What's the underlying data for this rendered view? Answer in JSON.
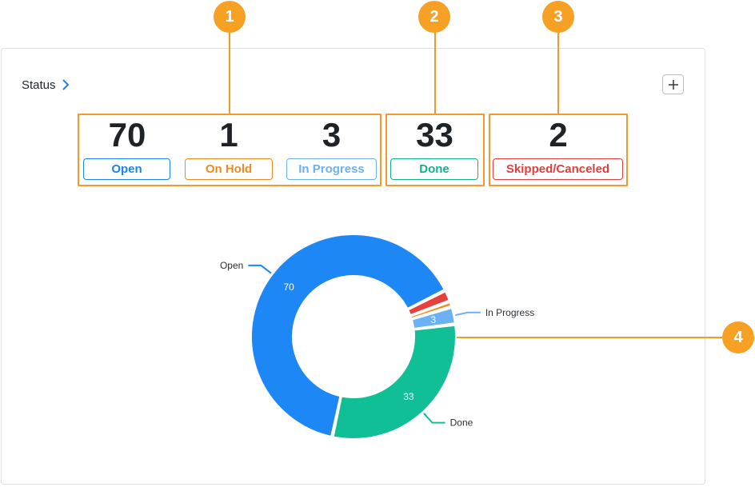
{
  "panel": {
    "title": "Status",
    "add_label": "+"
  },
  "badges": [
    "1",
    "2",
    "3",
    "4"
  ],
  "stats": [
    {
      "count": "70",
      "label": "Open",
      "color": "#1a84ef"
    },
    {
      "count": "1",
      "label": "On Hold",
      "color": "#ef8a1e"
    },
    {
      "count": "3",
      "label": "In Progress",
      "color": "#6cb1f3"
    },
    {
      "count": "33",
      "label": "Done",
      "color": "#12b08e"
    },
    {
      "count": "2",
      "label": "Skipped/Canceled",
      "color": "#e23d3d"
    }
  ],
  "chart_data": {
    "type": "pie",
    "categories": [
      "Open",
      "Skipped/Canceled",
      "On Hold",
      "In Progress",
      "Done"
    ],
    "values": [
      70,
      2,
      1,
      3,
      33
    ],
    "colors": [
      "#1d88f5",
      "#e8403c",
      "#f08c1e",
      "#6cb1f3",
      "#10bf95"
    ],
    "data_labels": [
      "70",
      "",
      "",
      "3",
      "33"
    ],
    "callouts": [
      "Open",
      "",
      "",
      "In Progress",
      "Done"
    ]
  }
}
